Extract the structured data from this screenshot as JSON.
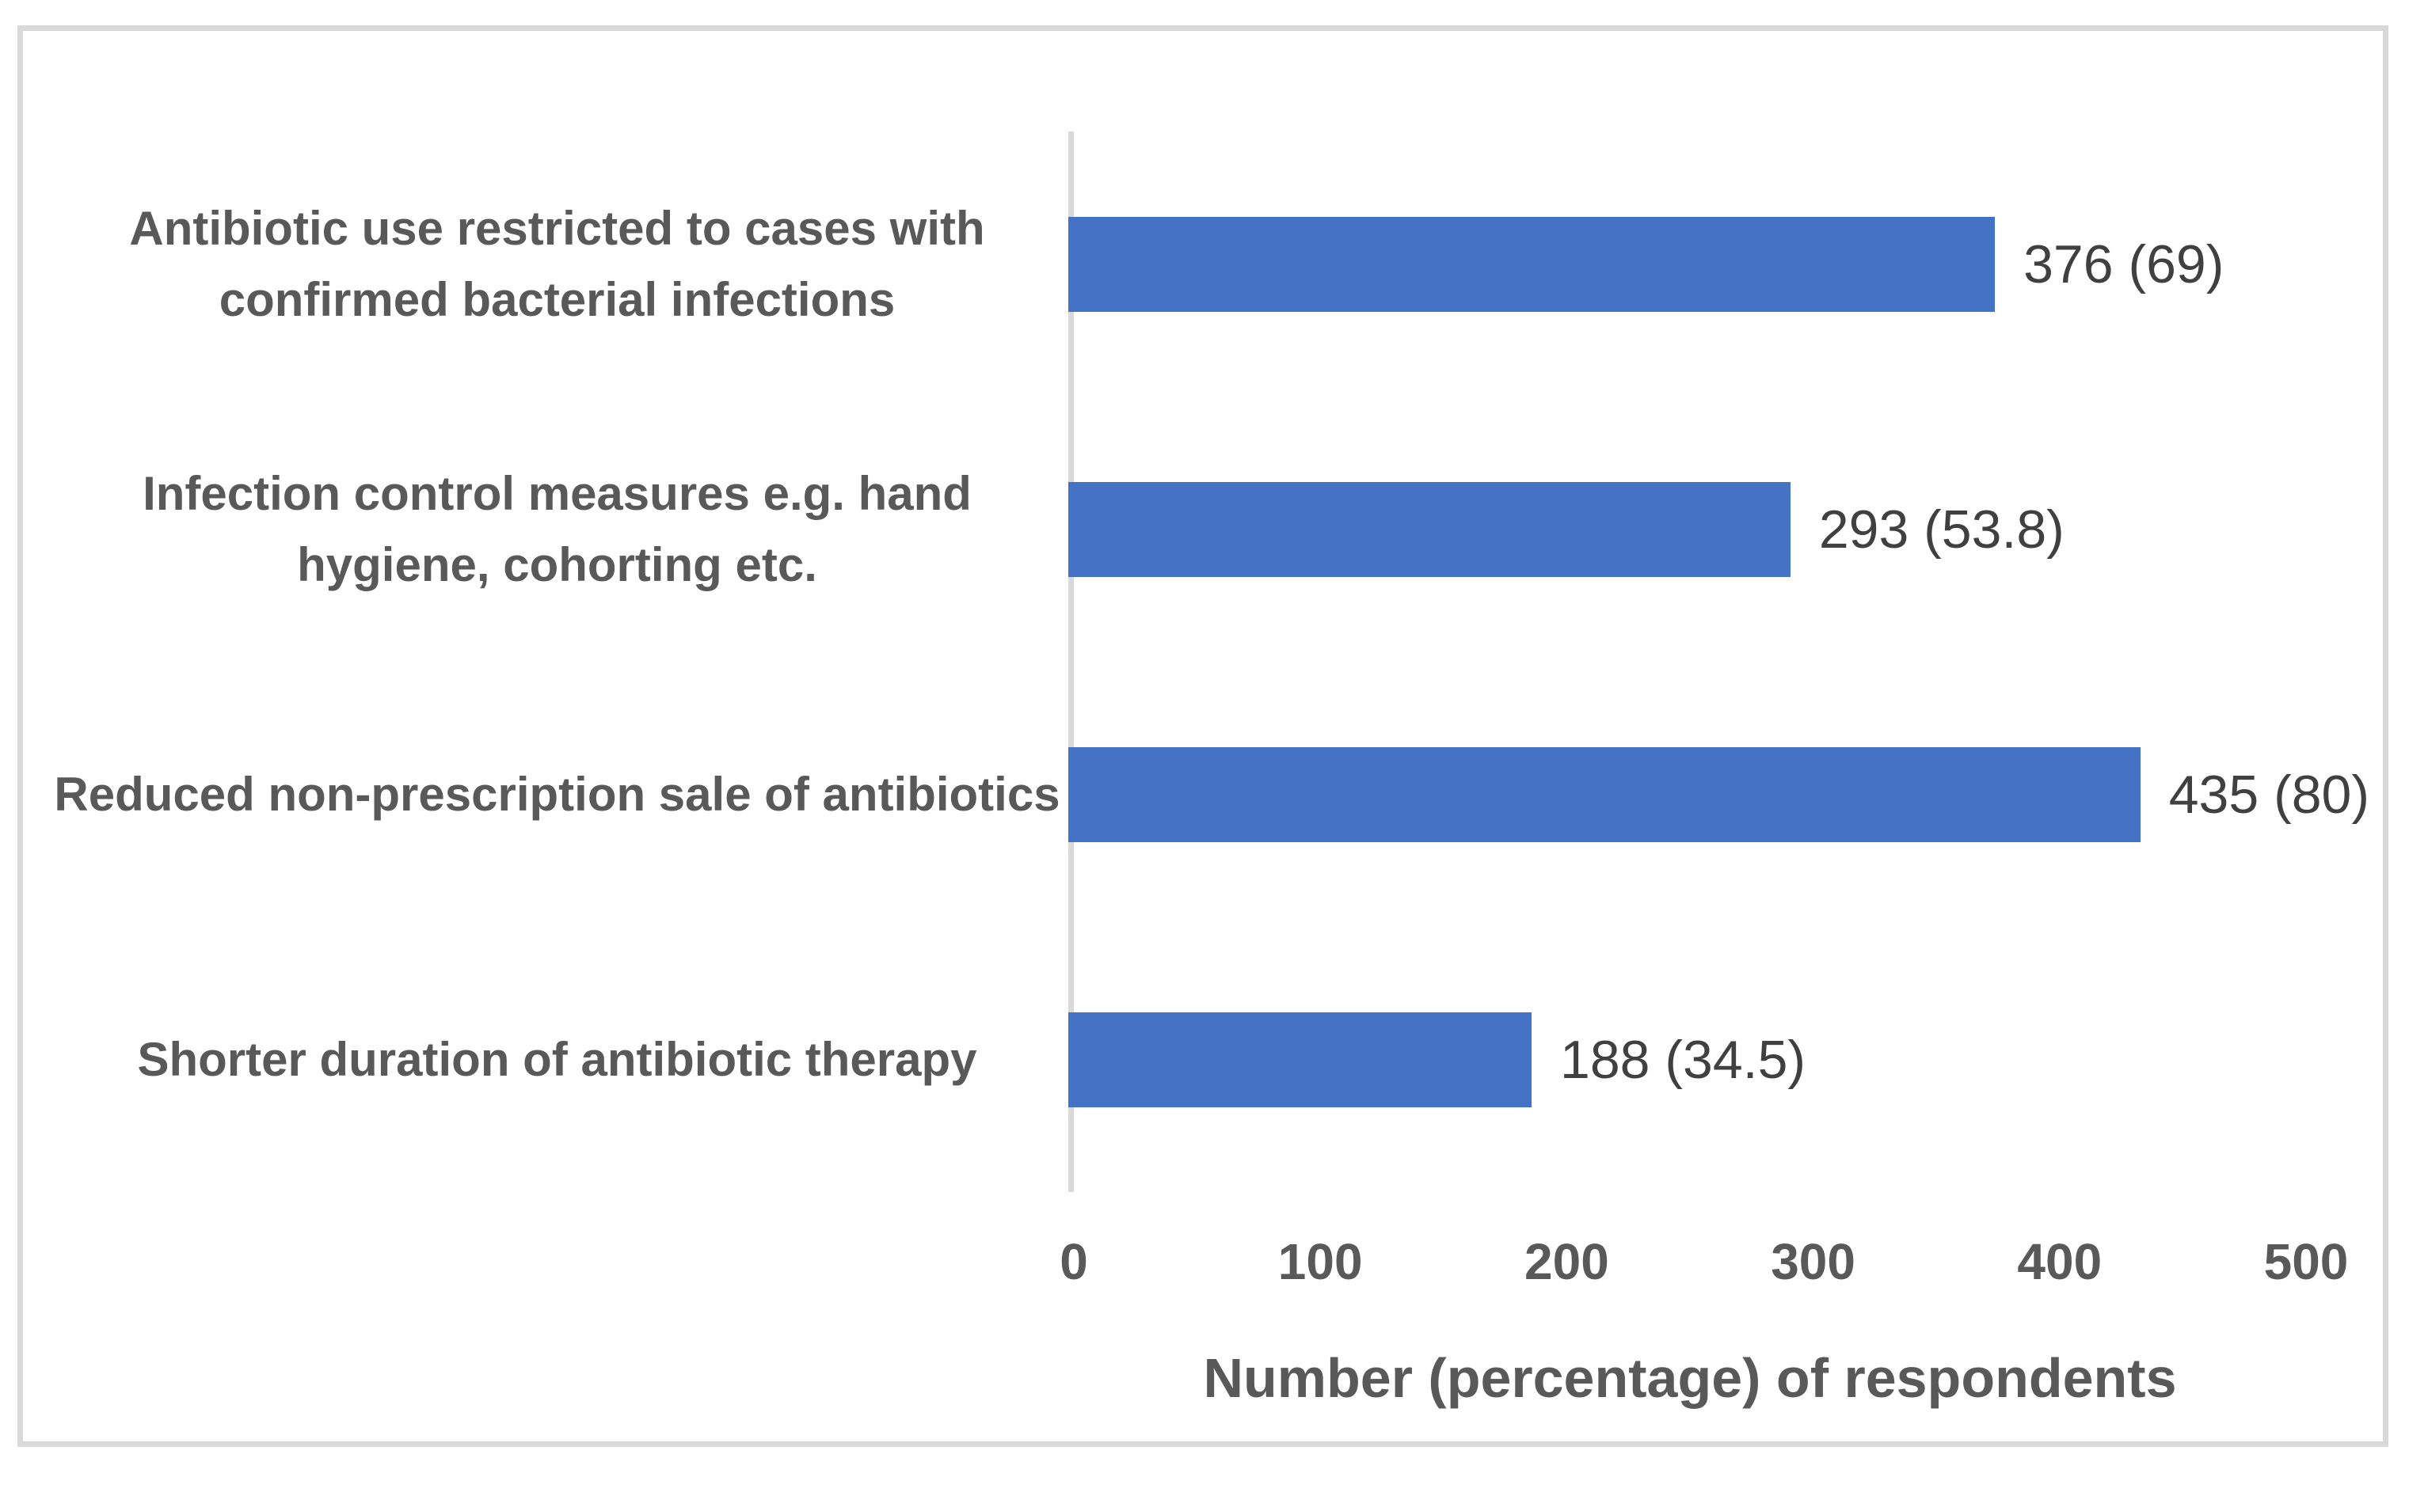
{
  "chart_data": {
    "type": "bar",
    "orientation": "horizontal",
    "categories": [
      "Antibiotic use restricted to cases with confirmed bacterial infections",
      "Infection control measures e.g. hand hygiene, cohorting etc.",
      "Reduced non-prescription sale of antibiotics",
      "Shorter duration of antibiotic therapy"
    ],
    "values": [
      376,
      293,
      435,
      188
    ],
    "percentages": [
      69,
      53.8,
      80,
      34.5
    ],
    "data_labels": [
      "376 (69)",
      "293 (53.8)",
      "435 (80)",
      "188 (34.5)"
    ],
    "xlabel": "Number (percentage) of respondents",
    "xlim": [
      0,
      500
    ],
    "xticks": [
      "0",
      "100",
      "200",
      "300",
      "400",
      "500"
    ],
    "legend": "none",
    "grid": false,
    "colors": {
      "bar": "#4472C4",
      "axis_line": "#D9D9D9",
      "frame_border": "#D9D9D9",
      "category_text": "#595959",
      "tick_text": "#595959",
      "value_text": "#404040"
    }
  }
}
